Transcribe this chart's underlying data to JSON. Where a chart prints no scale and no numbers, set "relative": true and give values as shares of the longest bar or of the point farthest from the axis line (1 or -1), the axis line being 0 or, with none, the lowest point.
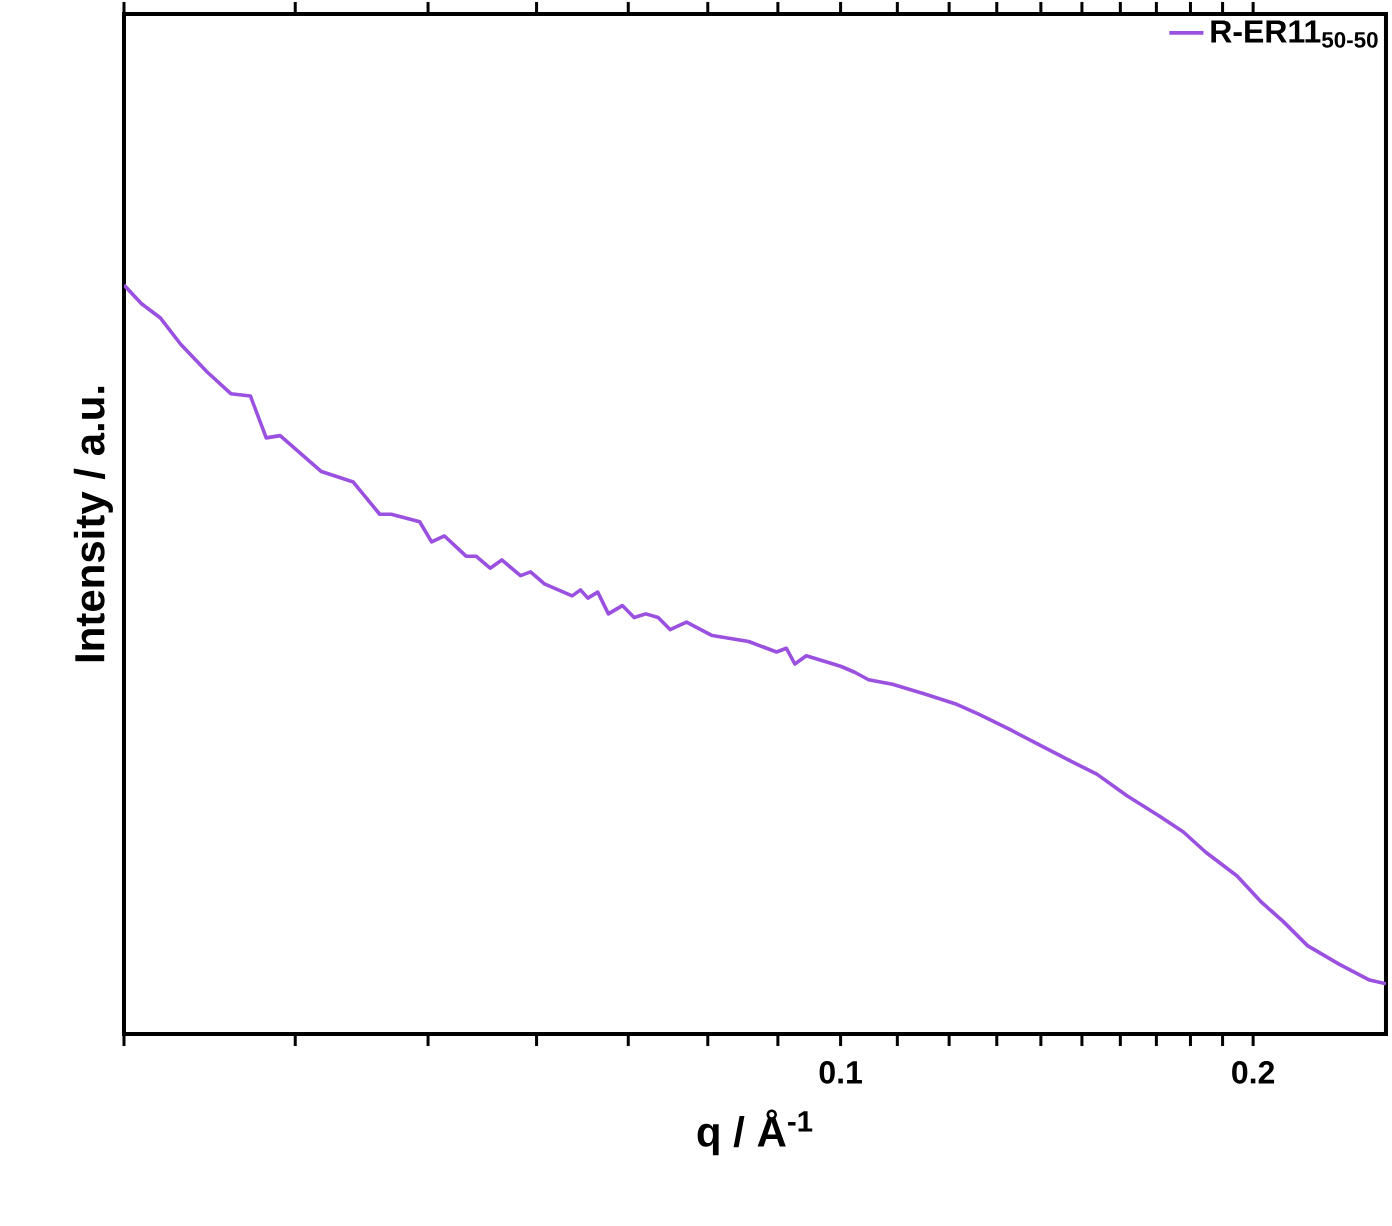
{
  "chart_data": {
    "type": "line",
    "xlabel": "q / Å$^{-1}$",
    "ylabel": "Intensity / a.u.",
    "relative": true,
    "log": "x",
    "legend": "top right",
    "line_style": "solid",
    "xlim": [
      0.03,
      0.25
    ],
    "xticks": [
      {
        "value": 0.03,
        "label": null
      },
      {
        "value": 0.04,
        "label": null
      },
      {
        "value": 0.05,
        "label": null
      },
      {
        "value": 0.06,
        "label": null
      },
      {
        "value": 0.07,
        "label": null
      },
      {
        "value": 0.08,
        "label": null
      },
      {
        "value": 0.09,
        "label": null
      },
      0.1,
      {
        "value": 0.11,
        "label": null
      },
      {
        "value": 0.12,
        "label": null
      },
      {
        "value": 0.13,
        "label": null
      },
      {
        "value": 0.14,
        "label": null
      },
      {
        "value": 0.15,
        "label": null
      },
      {
        "value": 0.16,
        "label": null
      },
      {
        "value": 0.17,
        "label": null
      },
      {
        "value": 0.18,
        "label": null
      },
      {
        "value": 0.19,
        "label": null
      },
      0.2
    ],
    "series": [
      {
        "name": "R-ER11$_{50-50}$",
        "color": "#9b51e0",
        "x": [
          0.03,
          0.0309,
          0.0319,
          0.033,
          0.0345,
          0.0359,
          0.0371,
          0.0381,
          0.039,
          0.0418,
          0.0441,
          0.0461,
          0.047,
          0.0493,
          0.0503,
          0.0514,
          0.0533,
          0.0542,
          0.0555,
          0.0566,
          0.0584,
          0.0594,
          0.0608,
          0.0637,
          0.0646,
          0.0654,
          0.0665,
          0.0677,
          0.0693,
          0.0707,
          0.0721,
          0.0736,
          0.0751,
          0.0772,
          0.0806,
          0.0857,
          0.0898,
          0.0913,
          0.0926,
          0.0944,
          0.1,
          0.1024,
          0.1048,
          0.1091,
          0.1152,
          0.1212,
          0.1261,
          0.1331,
          0.14,
          0.1477,
          0.1538,
          0.1618,
          0.1708,
          0.1778,
          0.1846,
          0.1947,
          0.2028,
          0.2104,
          0.2191,
          0.2312,
          0.2432,
          0.25
        ],
        "values": [
          1.0,
          0.975,
          0.956,
          0.921,
          0.884,
          0.855,
          0.852,
          0.796,
          0.799,
          0.751,
          0.737,
          0.694,
          0.694,
          0.684,
          0.657,
          0.665,
          0.638,
          0.638,
          0.622,
          0.633,
          0.612,
          0.617,
          0.601,
          0.585,
          0.593,
          0.582,
          0.59,
          0.561,
          0.572,
          0.556,
          0.561,
          0.556,
          0.54,
          0.55,
          0.532,
          0.524,
          0.51,
          0.515,
          0.494,
          0.505,
          0.491,
          0.483,
          0.473,
          0.467,
          0.454,
          0.441,
          0.427,
          0.406,
          0.385,
          0.363,
          0.347,
          0.318,
          0.291,
          0.27,
          0.243,
          0.211,
          0.176,
          0.15,
          0.118,
          0.093,
          0.072,
          0.067
        ]
      }
    ]
  }
}
